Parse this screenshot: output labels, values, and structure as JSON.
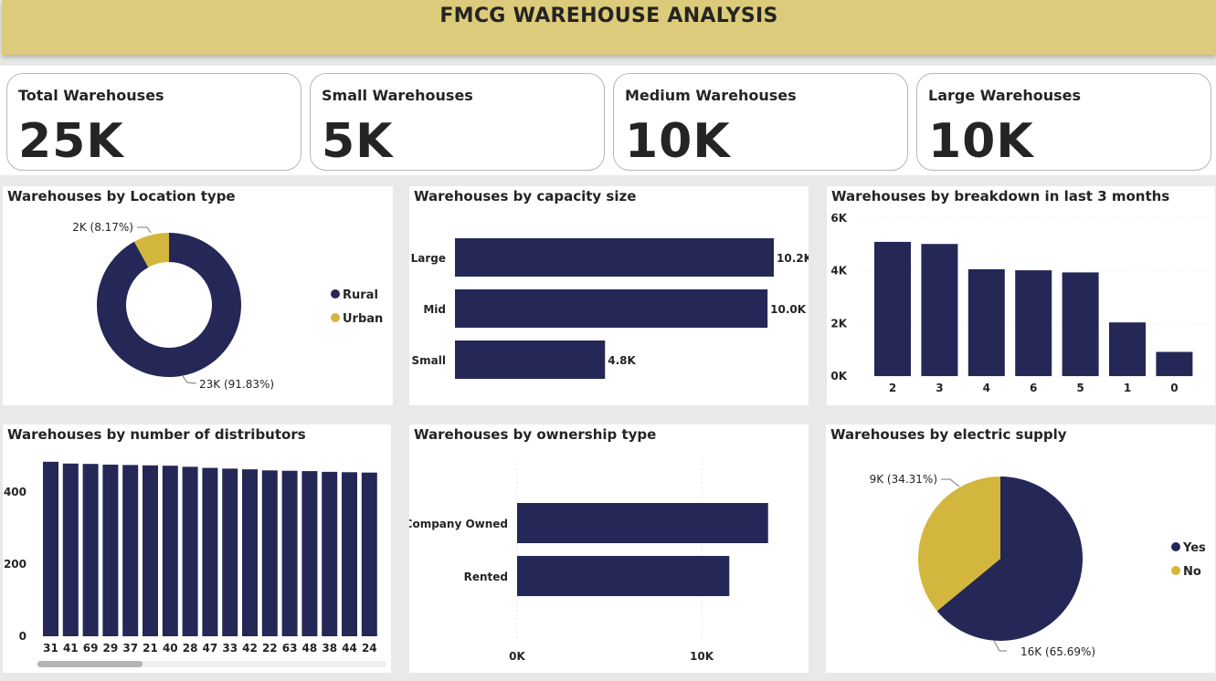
{
  "title": "FMCG WAREHOUSE ANALYSIS",
  "kpis": [
    {
      "label": "Total Warehouses",
      "value": "25K"
    },
    {
      "label": "Small Warehouses",
      "value": "5K"
    },
    {
      "label": "Medium Warehouses",
      "value": "10K"
    },
    {
      "label": "Large Warehouses",
      "value": "10K"
    }
  ],
  "colors": {
    "navy": "#252757",
    "gold": "#d3b63d",
    "header": "#dccb7a"
  },
  "chart_data": [
    {
      "type": "pie",
      "variant": "donut",
      "title": "Warehouses by Location type",
      "slices": [
        {
          "name": "Rural",
          "value": 23000,
          "percent": 91.83,
          "label": "23K (91.83%)",
          "color": "#252757"
        },
        {
          "name": "Urban",
          "value": 2000,
          "percent": 8.17,
          "label": "2K (8.17%)",
          "color": "#d3b63d"
        }
      ],
      "legend": [
        "Rural",
        "Urban"
      ],
      "legend_position": "right"
    },
    {
      "type": "bar",
      "orientation": "horizontal",
      "title": "Warehouses by capacity size",
      "categories": [
        "Large",
        "Mid",
        "Small"
      ],
      "values": [
        10200,
        10000,
        4800
      ],
      "data_labels": [
        "10.2K",
        "10.0K",
        "4.8K"
      ],
      "xlim": [
        0,
        10200
      ]
    },
    {
      "type": "bar",
      "title": "Warehouses by breakdown in last 3 months",
      "categories": [
        "2",
        "3",
        "4",
        "6",
        "5",
        "1",
        "0"
      ],
      "values": [
        5100,
        5020,
        4060,
        4020,
        3940,
        2040,
        920
      ],
      "yticks": [
        "0K",
        "2K",
        "4K",
        "6K"
      ],
      "ylim": [
        0,
        6000
      ]
    },
    {
      "type": "bar",
      "title": "Warehouses by number of distributors",
      "categories": [
        "31",
        "41",
        "69",
        "29",
        "37",
        "21",
        "40",
        "28",
        "47",
        "33",
        "42",
        "22",
        "63",
        "48",
        "38",
        "44",
        "24"
      ],
      "values": [
        484,
        479,
        478,
        476,
        475,
        474,
        473,
        470,
        467,
        465,
        463,
        460,
        459,
        458,
        456,
        455,
        454
      ],
      "yticks": [
        "0",
        "200",
        "400"
      ],
      "ylim": [
        0,
        500
      ]
    },
    {
      "type": "bar",
      "orientation": "horizontal",
      "title": "Warehouses by ownership type",
      "categories": [
        "Company Owned",
        "Rented"
      ],
      "values": [
        13600,
        11500
      ],
      "xticks": [
        "0K",
        "10K"
      ],
      "xlim": [
        0,
        15000
      ]
    },
    {
      "type": "pie",
      "title": "Warehouses by electric supply",
      "slices": [
        {
          "name": "Yes",
          "value": 16000,
          "percent": 65.69,
          "label": "16K (65.69%)",
          "color": "#252757"
        },
        {
          "name": "No",
          "value": 9000,
          "percent": 34.31,
          "label": "9K (34.31%)",
          "color": "#d3b63d"
        }
      ],
      "legend": [
        "Yes",
        "No"
      ],
      "legend_position": "right"
    }
  ]
}
